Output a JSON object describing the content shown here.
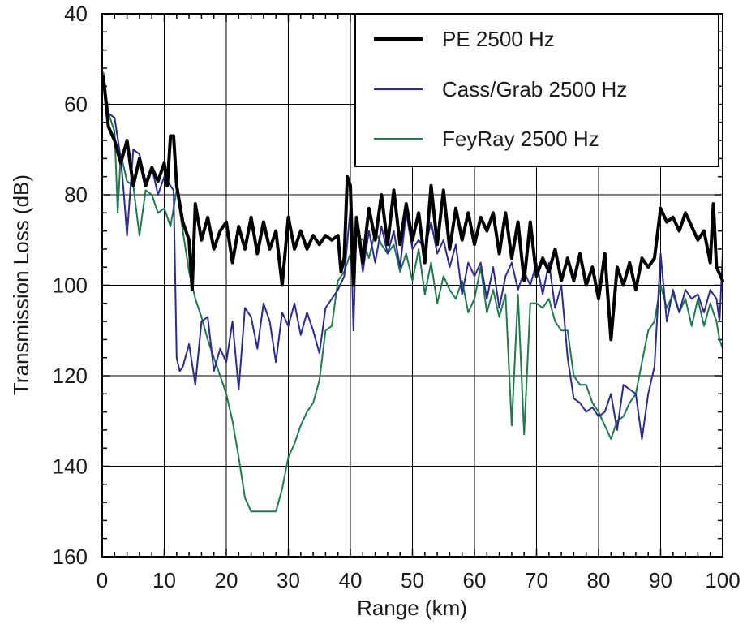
{
  "chart_data": {
    "type": "line",
    "title": "",
    "xlabel": "Range (km)",
    "ylabel": "Transmission Loss (dB)",
    "xlim": [
      0,
      100
    ],
    "ylim": [
      40,
      160
    ],
    "y_inverted": true,
    "x_ticks": [
      0,
      10,
      20,
      30,
      40,
      50,
      60,
      70,
      80,
      90,
      100
    ],
    "y_ticks": [
      40,
      60,
      80,
      100,
      120,
      140,
      160
    ],
    "x_tick_labels": [
      "0",
      "10",
      "20",
      "30",
      "40",
      "50",
      "60",
      "70",
      "80",
      "90",
      "100"
    ],
    "y_tick_labels": [
      "40",
      "60",
      "80",
      "100",
      "120",
      "140",
      "160"
    ],
    "grid": true,
    "legend_position": "top-right",
    "series": [
      {
        "name": "PE 2500 Hz",
        "color": "#000000",
        "width": 4,
        "points": [
          [
            0.2,
            54
          ],
          [
            1,
            65
          ],
          [
            2,
            68
          ],
          [
            3,
            73
          ],
          [
            4,
            68
          ],
          [
            5,
            78
          ],
          [
            6,
            72
          ],
          [
            7,
            78
          ],
          [
            8,
            74
          ],
          [
            9,
            77
          ],
          [
            10,
            73
          ],
          [
            10.5,
            78
          ],
          [
            11,
            67
          ],
          [
            11.5,
            67
          ],
          [
            12,
            78
          ],
          [
            12.5,
            82
          ],
          [
            13,
            86
          ],
          [
            14,
            90
          ],
          [
            14.5,
            101
          ],
          [
            15,
            82
          ],
          [
            16,
            90
          ],
          [
            17,
            85
          ],
          [
            18,
            92
          ],
          [
            19,
            88
          ],
          [
            20,
            86
          ],
          [
            21,
            95
          ],
          [
            22,
            87
          ],
          [
            23,
            92
          ],
          [
            24,
            85
          ],
          [
            25,
            93
          ],
          [
            26,
            86
          ],
          [
            27,
            92
          ],
          [
            28,
            88
          ],
          [
            29,
            100
          ],
          [
            30,
            85
          ],
          [
            31,
            92
          ],
          [
            32,
            88
          ],
          [
            33,
            92
          ],
          [
            34,
            89
          ],
          [
            35,
            91
          ],
          [
            36,
            89
          ],
          [
            37,
            90
          ],
          [
            38,
            89
          ],
          [
            38.5,
            97
          ],
          [
            39,
            94
          ],
          [
            39.5,
            76
          ],
          [
            40,
            78
          ],
          [
            40.5,
            100
          ],
          [
            41,
            85
          ],
          [
            42,
            95
          ],
          [
            43,
            83
          ],
          [
            44,
            90
          ],
          [
            45,
            80
          ],
          [
            46,
            91
          ],
          [
            47,
            79
          ],
          [
            48,
            91
          ],
          [
            49,
            82
          ],
          [
            50,
            90
          ],
          [
            51,
            84
          ],
          [
            52,
            95
          ],
          [
            53,
            78
          ],
          [
            54,
            91
          ],
          [
            55,
            79
          ],
          [
            56,
            92
          ],
          [
            57,
            83
          ],
          [
            58,
            90
          ],
          [
            59,
            84
          ],
          [
            60,
            91
          ],
          [
            61,
            85
          ],
          [
            62,
            88
          ],
          [
            63,
            84
          ],
          [
            64,
            93
          ],
          [
            65,
            84
          ],
          [
            66,
            94
          ],
          [
            67,
            86
          ],
          [
            68,
            99
          ],
          [
            69,
            86
          ],
          [
            70,
            98
          ],
          [
            71,
            94
          ],
          [
            72,
            97
          ],
          [
            73,
            92
          ],
          [
            74,
            99
          ],
          [
            75,
            94
          ],
          [
            76,
            99
          ],
          [
            77,
            93
          ],
          [
            78,
            100
          ],
          [
            79,
            96
          ],
          [
            80,
            103
          ],
          [
            81,
            93
          ],
          [
            82,
            112
          ],
          [
            83,
            96
          ],
          [
            84,
            100
          ],
          [
            85,
            95
          ],
          [
            86,
            101
          ],
          [
            87,
            94
          ],
          [
            88,
            96
          ],
          [
            89,
            94
          ],
          [
            90,
            83
          ],
          [
            91,
            86
          ],
          [
            92,
            85
          ],
          [
            93,
            88
          ],
          [
            94,
            84
          ],
          [
            95,
            87
          ],
          [
            96,
            90
          ],
          [
            97,
            88
          ],
          [
            98,
            95
          ],
          [
            98.5,
            82
          ],
          [
            99,
            96
          ],
          [
            100,
            99
          ]
        ]
      },
      {
        "name": "Cass/Grab 2500 Hz",
        "color": "#2b2b8f",
        "width": 2,
        "points": [
          [
            0.2,
            54
          ],
          [
            1,
            62
          ],
          [
            2,
            63
          ],
          [
            3,
            72
          ],
          [
            3.5,
            80
          ],
          [
            4,
            89
          ],
          [
            5,
            70
          ],
          [
            6,
            71
          ],
          [
            7,
            77
          ],
          [
            8,
            74
          ],
          [
            9,
            80
          ],
          [
            10,
            76
          ],
          [
            11,
            78
          ],
          [
            11.5,
            79
          ],
          [
            12,
            116
          ],
          [
            12.5,
            119
          ],
          [
            13,
            118
          ],
          [
            14,
            113
          ],
          [
            15,
            122
          ],
          [
            16,
            108
          ],
          [
            17,
            107
          ],
          [
            18,
            119
          ],
          [
            19,
            114
          ],
          [
            20,
            117
          ],
          [
            21,
            108
          ],
          [
            22,
            123
          ],
          [
            23,
            105
          ],
          [
            24,
            107
          ],
          [
            25,
            114
          ],
          [
            26,
            104
          ],
          [
            27,
            108
          ],
          [
            28,
            117
          ],
          [
            29,
            106
          ],
          [
            30,
            109
          ],
          [
            31,
            104
          ],
          [
            32,
            111
          ],
          [
            33,
            106
          ],
          [
            34,
            110
          ],
          [
            35,
            115
          ],
          [
            36,
            105
          ],
          [
            37,
            103
          ],
          [
            38,
            101
          ],
          [
            39,
            98
          ],
          [
            40,
            83
          ],
          [
            40.5,
            110
          ],
          [
            41,
            86
          ],
          [
            42,
            97
          ],
          [
            43,
            88
          ],
          [
            44,
            95
          ],
          [
            45,
            87
          ],
          [
            46,
            93
          ],
          [
            47,
            88
          ],
          [
            48,
            96
          ],
          [
            49,
            84
          ],
          [
            50,
            92
          ],
          [
            51,
            90
          ],
          [
            52,
            92
          ],
          [
            53,
            86
          ],
          [
            54,
            93
          ],
          [
            55,
            90
          ],
          [
            56,
            96
          ],
          [
            57,
            91
          ],
          [
            58,
            102
          ],
          [
            59,
            95
          ],
          [
            60,
            98
          ],
          [
            61,
            95
          ],
          [
            62,
            103
          ],
          [
            63,
            96
          ],
          [
            64,
            105
          ],
          [
            65,
            98
          ],
          [
            66,
            95
          ],
          [
            67,
            101
          ],
          [
            68,
            97
          ],
          [
            69,
            100
          ],
          [
            70,
            95
          ],
          [
            71,
            102
          ],
          [
            72,
            95
          ],
          [
            73,
            105
          ],
          [
            74,
            100
          ],
          [
            75,
            116
          ],
          [
            76,
            125
          ],
          [
            77,
            126
          ],
          [
            78,
            128
          ],
          [
            79,
            127
          ],
          [
            80,
            129
          ],
          [
            81,
            128
          ],
          [
            82,
            124
          ],
          [
            83,
            132
          ],
          [
            84,
            122
          ],
          [
            85,
            123
          ],
          [
            86,
            124
          ],
          [
            87,
            134
          ],
          [
            88,
            124
          ],
          [
            89,
            118
          ],
          [
            90,
            93
          ],
          [
            91,
            108
          ],
          [
            92,
            101
          ],
          [
            93,
            106
          ],
          [
            94,
            101
          ],
          [
            95,
            103
          ],
          [
            96,
            102
          ],
          [
            97,
            106
          ],
          [
            98,
            101
          ],
          [
            99,
            103
          ],
          [
            99.5,
            108
          ],
          [
            100,
            93
          ]
        ]
      },
      {
        "name": "FeyRay 2500 Hz",
        "color": "#1f7a4d",
        "width": 2,
        "points": [
          [
            0.2,
            53
          ],
          [
            1,
            62
          ],
          [
            2,
            66
          ],
          [
            2.5,
            84
          ],
          [
            3,
            71
          ],
          [
            4,
            77
          ],
          [
            5,
            78
          ],
          [
            6,
            89
          ],
          [
            7,
            79
          ],
          [
            8,
            80
          ],
          [
            9,
            84
          ],
          [
            10,
            83
          ],
          [
            11,
            87
          ],
          [
            12,
            79
          ],
          [
            13,
            88
          ],
          [
            14,
            97
          ],
          [
            15,
            103
          ],
          [
            16,
            107
          ],
          [
            17,
            112
          ],
          [
            18,
            116
          ],
          [
            19,
            120
          ],
          [
            20,
            124
          ],
          [
            21,
            130
          ],
          [
            22,
            138
          ],
          [
            23,
            147
          ],
          [
            24,
            150
          ],
          [
            25,
            150
          ],
          [
            26,
            150
          ],
          [
            27,
            150
          ],
          [
            28,
            150
          ],
          [
            29,
            145
          ],
          [
            30,
            138
          ],
          [
            31,
            135
          ],
          [
            32,
            131
          ],
          [
            33,
            128
          ],
          [
            34,
            126
          ],
          [
            35,
            121
          ],
          [
            36,
            110
          ],
          [
            37,
            109
          ],
          [
            38,
            99
          ],
          [
            39,
            97
          ],
          [
            40,
            93
          ],
          [
            41,
            89
          ],
          [
            42,
            90
          ],
          [
            43,
            94
          ],
          [
            44,
            88
          ],
          [
            45,
            91
          ],
          [
            46,
            93
          ],
          [
            47,
            91
          ],
          [
            48,
            97
          ],
          [
            49,
            93
          ],
          [
            50,
            99
          ],
          [
            51,
            92
          ],
          [
            52,
            102
          ],
          [
            53,
            95
          ],
          [
            54,
            104
          ],
          [
            55,
            98
          ],
          [
            56,
            101
          ],
          [
            57,
            103
          ],
          [
            58,
            99
          ],
          [
            59,
            106
          ],
          [
            60,
            103
          ],
          [
            61,
            96
          ],
          [
            62,
            106
          ],
          [
            63,
            101
          ],
          [
            64,
            107
          ],
          [
            65,
            102
          ],
          [
            66,
            131
          ],
          [
            67,
            102
          ],
          [
            68,
            133
          ],
          [
            69,
            104
          ],
          [
            70,
            104
          ],
          [
            71,
            105
          ],
          [
            72,
            103
          ],
          [
            73,
            108
          ],
          [
            74,
            110
          ],
          [
            75,
            110
          ],
          [
            76,
            120
          ],
          [
            77,
            122
          ],
          [
            78,
            122
          ],
          [
            79,
            126
          ],
          [
            80,
            128
          ],
          [
            81,
            131
          ],
          [
            82,
            134
          ],
          [
            83,
            130
          ],
          [
            84,
            129
          ],
          [
            85,
            126
          ],
          [
            86,
            124
          ],
          [
            87,
            117
          ],
          [
            88,
            110
          ],
          [
            89,
            108
          ],
          [
            90,
            100
          ],
          [
            91,
            105
          ],
          [
            92,
            102
          ],
          [
            93,
            106
          ],
          [
            94,
            103
          ],
          [
            95,
            109
          ],
          [
            96,
            103
          ],
          [
            97,
            109
          ],
          [
            98,
            104
          ],
          [
            99,
            108
          ],
          [
            99.5,
            112
          ],
          [
            100,
            114
          ]
        ]
      }
    ]
  }
}
